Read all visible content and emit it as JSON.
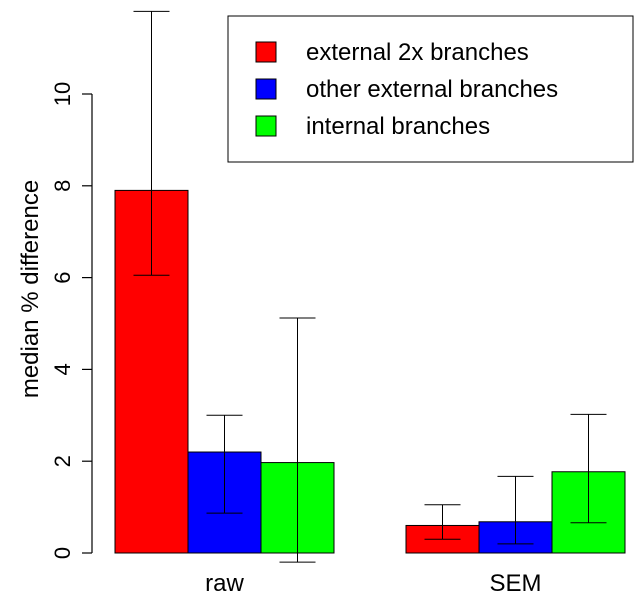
{
  "chart_data": {
    "type": "bar",
    "categories": [
      "raw",
      "SEM"
    ],
    "ylabel": "median % difference",
    "xlabel": "",
    "ylim": [
      0,
      12
    ],
    "yticks": [
      0,
      2,
      4,
      6,
      8,
      10
    ],
    "legend_position": "top-right",
    "grid": false,
    "series": [
      {
        "name": "external 2x branches",
        "color": "#ff0000",
        "values": [
          7.9,
          0.6
        ],
        "err_low": [
          6.05,
          0.3
        ],
        "err_high": [
          11.8,
          1.05
        ]
      },
      {
        "name": "other external branches",
        "color": "#0000ff",
        "values": [
          2.2,
          0.68
        ],
        "err_low": [
          0.87,
          0.2
        ],
        "err_high": [
          3.0,
          1.67
        ]
      },
      {
        "name": "internal branches",
        "color": "#00ff00",
        "values": [
          1.97,
          1.77
        ],
        "err_low": [
          -0.2,
          0.66
        ],
        "err_high": [
          5.12,
          3.02
        ]
      }
    ]
  }
}
